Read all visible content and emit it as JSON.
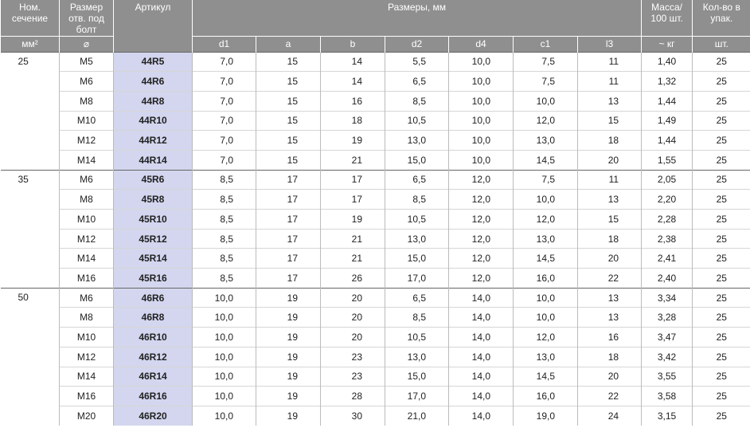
{
  "header": {
    "section": "Ном. сечение",
    "bolt": "Размер отв. под болт",
    "article": "Артикул",
    "dims_title": "Размеры, мм",
    "mass": "Масса/ 100 шт.",
    "qty": "Кол-во в упак.",
    "section_unit": "мм²",
    "bolt_unit": "⌀",
    "dims": [
      "d1",
      "a",
      "b",
      "d2",
      "d4",
      "c1",
      "l3"
    ],
    "mass_unit": "~ кг",
    "qty_unit": "шт."
  },
  "groups": [
    {
      "section": "25",
      "rows": [
        [
          "M5",
          "44R5",
          "7,0",
          "15",
          "14",
          "5,5",
          "10,0",
          "7,5",
          "11",
          "1,40",
          "25"
        ],
        [
          "M6",
          "44R6",
          "7,0",
          "15",
          "14",
          "6,5",
          "10,0",
          "7,5",
          "11",
          "1,32",
          "25"
        ],
        [
          "M8",
          "44R8",
          "7,0",
          "15",
          "16",
          "8,5",
          "10,0",
          "10,0",
          "13",
          "1,44",
          "25"
        ],
        [
          "M10",
          "44R10",
          "7,0",
          "15",
          "18",
          "10,5",
          "10,0",
          "12,0",
          "15",
          "1,49",
          "25"
        ],
        [
          "M12",
          "44R12",
          "7,0",
          "15",
          "19",
          "13,0",
          "10,0",
          "13,0",
          "18",
          "1,44",
          "25"
        ],
        [
          "M14",
          "44R14",
          "7,0",
          "15",
          "21",
          "15,0",
          "10,0",
          "14,5",
          "20",
          "1,55",
          "25"
        ]
      ]
    },
    {
      "section": "35",
      "rows": [
        [
          "M6",
          "45R6",
          "8,5",
          "17",
          "17",
          "6,5",
          "12,0",
          "7,5",
          "11",
          "2,05",
          "25"
        ],
        [
          "M8",
          "45R8",
          "8,5",
          "17",
          "17",
          "8,5",
          "12,0",
          "10,0",
          "13",
          "2,20",
          "25"
        ],
        [
          "M10",
          "45R10",
          "8,5",
          "17",
          "19",
          "10,5",
          "12,0",
          "12,0",
          "15",
          "2,28",
          "25"
        ],
        [
          "M12",
          "45R12",
          "8,5",
          "17",
          "21",
          "13,0",
          "12,0",
          "13,0",
          "18",
          "2,38",
          "25"
        ],
        [
          "M14",
          "45R14",
          "8,5",
          "17",
          "21",
          "15,0",
          "12,0",
          "14,5",
          "20",
          "2,41",
          "25"
        ],
        [
          "M16",
          "45R16",
          "8,5",
          "17",
          "26",
          "17,0",
          "12,0",
          "16,0",
          "22",
          "2,40",
          "25"
        ]
      ]
    },
    {
      "section": "50",
      "rows": [
        [
          "M6",
          "46R6",
          "10,0",
          "19",
          "20",
          "6,5",
          "14,0",
          "10,0",
          "13",
          "3,34",
          "25"
        ],
        [
          "M8",
          "46R8",
          "10,0",
          "19",
          "20",
          "8,5",
          "14,0",
          "10,0",
          "13",
          "3,28",
          "25"
        ],
        [
          "M10",
          "46R10",
          "10,0",
          "19",
          "20",
          "10,5",
          "14,0",
          "12,0",
          "16",
          "3,47",
          "25"
        ],
        [
          "M12",
          "46R12",
          "10,0",
          "19",
          "23",
          "13,0",
          "14,0",
          "13,0",
          "18",
          "3,42",
          "25"
        ],
        [
          "M14",
          "46R14",
          "10,0",
          "19",
          "23",
          "15,0",
          "14,0",
          "14,5",
          "20",
          "3,55",
          "25"
        ],
        [
          "M16",
          "46R16",
          "10,0",
          "19",
          "28",
          "17,0",
          "14,0",
          "16,0",
          "22",
          "3,58",
          "25"
        ],
        [
          "M20",
          "46R20",
          "10,0",
          "19",
          "30",
          "21,0",
          "14,0",
          "19,0",
          "24",
          "3,15",
          "25"
        ]
      ]
    }
  ]
}
